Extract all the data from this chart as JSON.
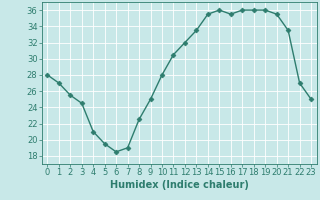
{
  "x": [
    0,
    1,
    2,
    3,
    4,
    5,
    6,
    7,
    8,
    9,
    10,
    11,
    12,
    13,
    14,
    15,
    16,
    17,
    18,
    19,
    20,
    21,
    22,
    23
  ],
  "y": [
    28,
    27,
    25.5,
    24.5,
    21,
    19.5,
    18.5,
    19,
    22.5,
    25,
    28,
    30.5,
    32,
    33.5,
    35.5,
    36,
    35.5,
    36,
    36,
    36,
    35.5,
    33.5,
    27,
    25
  ],
  "line_color": "#2e7d6e",
  "marker": "D",
  "marker_size": 2.5,
  "background_color": "#c8e8e8",
  "grid_color": "#ffffff",
  "xlabel": "Humidex (Indice chaleur)",
  "ylim": [
    17,
    37
  ],
  "xlim": [
    -0.5,
    23.5
  ],
  "yticks": [
    18,
    20,
    22,
    24,
    26,
    28,
    30,
    32,
    34,
    36
  ],
  "xticks": [
    0,
    1,
    2,
    3,
    4,
    5,
    6,
    7,
    8,
    9,
    10,
    11,
    12,
    13,
    14,
    15,
    16,
    17,
    18,
    19,
    20,
    21,
    22,
    23
  ],
  "xlabel_fontsize": 7,
  "tick_fontsize": 6,
  "line_width": 1.0
}
